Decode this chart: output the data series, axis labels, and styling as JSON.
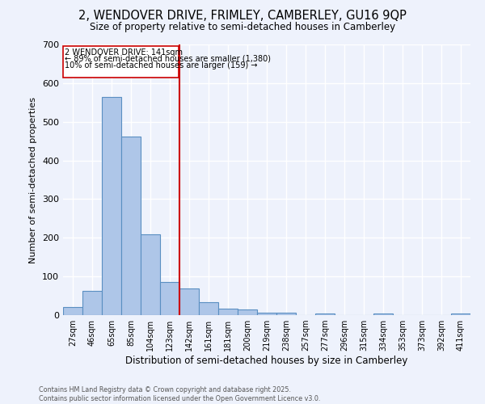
{
  "title": "2, WENDOVER DRIVE, FRIMLEY, CAMBERLEY, GU16 9QP",
  "subtitle": "Size of property relative to semi-detached houses in Camberley",
  "xlabel": "Distribution of semi-detached houses by size in Camberley",
  "ylabel": "Number of semi-detached properties",
  "bin_labels": [
    "27sqm",
    "46sqm",
    "65sqm",
    "85sqm",
    "104sqm",
    "123sqm",
    "142sqm",
    "161sqm",
    "181sqm",
    "200sqm",
    "219sqm",
    "238sqm",
    "257sqm",
    "277sqm",
    "296sqm",
    "315sqm",
    "334sqm",
    "353sqm",
    "373sqm",
    "392sqm",
    "411sqm"
  ],
  "bar_heights": [
    20,
    62,
    565,
    462,
    210,
    85,
    70,
    33,
    17,
    15,
    7,
    7,
    0,
    5,
    0,
    0,
    5,
    0,
    0,
    0,
    4
  ],
  "bar_color": "#aec6e8",
  "bar_edge_color": "#5a8fc2",
  "vline_color": "#cc0000",
  "annotation_title": "2 WENDOVER DRIVE: 141sqm",
  "annotation_line1": "← 89% of semi-detached houses are smaller (1,380)",
  "annotation_line2": "10% of semi-detached houses are larger (159) →",
  "annotation_box_color": "#cc0000",
  "ylim": [
    0,
    700
  ],
  "yticks": [
    0,
    100,
    200,
    300,
    400,
    500,
    600,
    700
  ],
  "footer_line1": "Contains HM Land Registry data © Crown copyright and database right 2025.",
  "footer_line2": "Contains public sector information licensed under the Open Government Licence v3.0.",
  "bg_color": "#eef2fc",
  "grid_color": "#ffffff"
}
